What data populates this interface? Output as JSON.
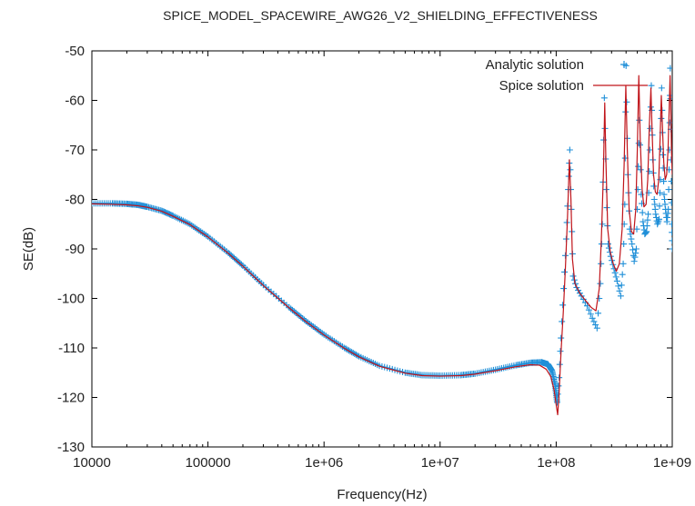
{
  "chart_data": {
    "type": "line",
    "title": "SPICE_MODEL_SPACEWIRE_AWG26_V2_SHIELDING_EFFECTIVENESS",
    "xlabel": "Frequency(Hz)",
    "ylabel": "SE(dB)",
    "xscale": "log",
    "xlim": [
      10000,
      1000000000
    ],
    "ylim": [
      -130,
      -50
    ],
    "xticks": [
      {
        "v": 10000,
        "label": "10000"
      },
      {
        "v": 100000,
        "label": "100000"
      },
      {
        "v": 1000000,
        "label": "1e+06"
      },
      {
        "v": 10000000,
        "label": "1e+07"
      },
      {
        "v": 100000000,
        "label": "1e+08"
      },
      {
        "v": 1000000000,
        "label": "1e+09"
      }
    ],
    "yticks": [
      {
        "v": -50,
        "label": "-50"
      },
      {
        "v": -60,
        "label": "-60"
      },
      {
        "v": -70,
        "label": "-70"
      },
      {
        "v": -80,
        "label": "-80"
      },
      {
        "v": -90,
        "label": "-90"
      },
      {
        "v": -100,
        "label": "-100"
      },
      {
        "v": -110,
        "label": "-110"
      },
      {
        "v": -120,
        "label": "-120"
      },
      {
        "v": -130,
        "label": "-130"
      }
    ],
    "legend_position": "top-right",
    "series": [
      {
        "name": "Analytic solution",
        "style": "points",
        "marker": "+",
        "color": "#1f8fd8",
        "points": [
          [
            10000,
            -80.8
          ],
          [
            15000,
            -80.8
          ],
          [
            20000,
            -80.9
          ],
          [
            25000,
            -81.1
          ],
          [
            30000,
            -81.5
          ],
          [
            40000,
            -82.3
          ],
          [
            50000,
            -83.3
          ],
          [
            70000,
            -85.0
          ],
          [
            100000,
            -87.5
          ],
          [
            150000,
            -90.8
          ],
          [
            200000,
            -93.4
          ],
          [
            300000,
            -97.3
          ],
          [
            500000,
            -101.8
          ],
          [
            700000,
            -104.6
          ],
          [
            1000000,
            -107.3
          ],
          [
            1500000,
            -110.0
          ],
          [
            2000000,
            -111.7
          ],
          [
            3000000,
            -113.6
          ],
          [
            5000000,
            -115.0
          ],
          [
            7000000,
            -115.5
          ],
          [
            10000000,
            -115.6
          ],
          [
            15000000,
            -115.5
          ],
          [
            20000000,
            -115.2
          ],
          [
            30000000,
            -114.4
          ],
          [
            45000000,
            -113.5
          ],
          [
            60000000,
            -113.0
          ],
          [
            75000000,
            -112.9
          ],
          [
            85000000,
            -113.3
          ],
          [
            92000000,
            -114.6
          ],
          [
            98000000,
            -117.5
          ],
          [
            102000000,
            -121.0
          ],
          [
            106000000,
            -116.0
          ],
          [
            110000000,
            -108.0
          ],
          [
            116000000,
            -98.0
          ],
          [
            122000000,
            -88.0
          ],
          [
            127000000,
            -78.0
          ],
          [
            131000000,
            -70.0
          ],
          [
            135000000,
            -82.0
          ],
          [
            140000000,
            -95.5
          ],
          [
            150000000,
            -97.8
          ],
          [
            165000000,
            -99.5
          ],
          [
            185000000,
            -101.5
          ],
          [
            205000000,
            -104.0
          ],
          [
            225000000,
            -106.0
          ],
          [
            240000000,
            -97.0
          ],
          [
            250000000,
            -85.0
          ],
          [
            260000000,
            -59.5
          ],
          [
            270000000,
            -78.0
          ],
          [
            280000000,
            -89.0
          ],
          [
            295000000,
            -91.5
          ],
          [
            315000000,
            -94.0
          ],
          [
            335000000,
            -96.5
          ],
          [
            360000000,
            -99.5
          ],
          [
            378000000,
            -93.0
          ],
          [
            390000000,
            -81.0
          ],
          [
            400000000,
            -53.0
          ],
          [
            415000000,
            -75.0
          ],
          [
            430000000,
            -86.0
          ],
          [
            450000000,
            -89.0
          ],
          [
            470000000,
            -92.5
          ],
          [
            490000000,
            -90.0
          ],
          [
            505000000,
            -78.0
          ],
          [
            520000000,
            -64.0
          ],
          [
            540000000,
            -79.0
          ],
          [
            560000000,
            -84.5
          ],
          [
            580000000,
            -87.0
          ],
          [
            600000000,
            -86.5
          ],
          [
            620000000,
            -83.0
          ],
          [
            640000000,
            -70.0
          ],
          [
            660000000,
            -57.0
          ],
          [
            680000000,
            -72.0
          ],
          [
            700000000,
            -80.0
          ],
          [
            720000000,
            -83.0
          ],
          [
            745000000,
            -85.0
          ],
          [
            770000000,
            -84.0
          ],
          [
            790000000,
            -76.0
          ],
          [
            810000000,
            -57.5
          ],
          [
            830000000,
            -71.0
          ],
          [
            850000000,
            -79.0
          ],
          [
            875000000,
            -82.0
          ],
          [
            900000000,
            -84.5
          ],
          [
            925000000,
            -82.0
          ],
          [
            945000000,
            -70.0
          ],
          [
            962000000,
            -53.5
          ],
          [
            978000000,
            -72.0
          ],
          [
            990000000,
            -85.0
          ],
          [
            1000000000,
            -90.0
          ]
        ]
      },
      {
        "name": "Spice solution",
        "style": "line",
        "color": "#c0141a",
        "points": [
          [
            10000,
            -80.9
          ],
          [
            15000,
            -81.0
          ],
          [
            20000,
            -81.1
          ],
          [
            25000,
            -81.3
          ],
          [
            30000,
            -81.6
          ],
          [
            40000,
            -82.4
          ],
          [
            50000,
            -83.4
          ],
          [
            70000,
            -85.1
          ],
          [
            100000,
            -87.6
          ],
          [
            150000,
            -90.9
          ],
          [
            200000,
            -93.5
          ],
          [
            300000,
            -97.4
          ],
          [
            500000,
            -101.9
          ],
          [
            700000,
            -104.7
          ],
          [
            1000000,
            -107.4
          ],
          [
            1500000,
            -110.1
          ],
          [
            2000000,
            -111.8
          ],
          [
            3000000,
            -113.7
          ],
          [
            5000000,
            -115.1
          ],
          [
            7000000,
            -115.6
          ],
          [
            10000000,
            -115.7
          ],
          [
            15000000,
            -115.6
          ],
          [
            20000000,
            -115.3
          ],
          [
            30000000,
            -114.6
          ],
          [
            45000000,
            -113.8
          ],
          [
            60000000,
            -113.4
          ],
          [
            72000000,
            -113.5
          ],
          [
            82000000,
            -114.3
          ],
          [
            90000000,
            -115.8
          ],
          [
            96000000,
            -118.5
          ],
          [
            100000000,
            -121.5
          ],
          [
            103000000,
            -123.5
          ],
          [
            106000000,
            -119.0
          ],
          [
            110000000,
            -111.0
          ],
          [
            115000000,
            -103.0
          ],
          [
            120000000,
            -94.0
          ],
          [
            125000000,
            -84.0
          ],
          [
            130000000,
            -72.0
          ],
          [
            134000000,
            -80.0
          ],
          [
            138000000,
            -92.0
          ],
          [
            145000000,
            -97.0
          ],
          [
            160000000,
            -99.0
          ],
          [
            180000000,
            -100.5
          ],
          [
            200000000,
            -101.8
          ],
          [
            220000000,
            -102.5
          ],
          [
            235000000,
            -98.0
          ],
          [
            245000000,
            -88.0
          ],
          [
            255000000,
            -75.0
          ],
          [
            262000000,
            -60.5
          ],
          [
            268000000,
            -72.0
          ],
          [
            278000000,
            -86.0
          ],
          [
            292000000,
            -90.5
          ],
          [
            310000000,
            -93.0
          ],
          [
            330000000,
            -94.5
          ],
          [
            350000000,
            -93.0
          ],
          [
            370000000,
            -86.0
          ],
          [
            385000000,
            -73.0
          ],
          [
            398000000,
            -57.0
          ],
          [
            410000000,
            -70.0
          ],
          [
            425000000,
            -82.0
          ],
          [
            445000000,
            -86.5
          ],
          [
            465000000,
            -87.0
          ],
          [
            485000000,
            -82.0
          ],
          [
            500000000,
            -70.0
          ],
          [
            515000000,
            -55.0
          ],
          [
            530000000,
            -68.0
          ],
          [
            550000000,
            -78.0
          ],
          [
            570000000,
            -81.5
          ],
          [
            595000000,
            -81.0
          ],
          [
            615000000,
            -76.0
          ],
          [
            635000000,
            -65.0
          ],
          [
            655000000,
            -57.5
          ],
          [
            670000000,
            -66.0
          ],
          [
            690000000,
            -75.0
          ],
          [
            715000000,
            -78.5
          ],
          [
            740000000,
            -79.0
          ],
          [
            765000000,
            -76.0
          ],
          [
            785000000,
            -68.0
          ],
          [
            805000000,
            -59.0
          ],
          [
            825000000,
            -66.0
          ],
          [
            845000000,
            -72.5
          ],
          [
            870000000,
            -76.0
          ],
          [
            895000000,
            -75.0
          ],
          [
            920000000,
            -70.0
          ],
          [
            940000000,
            -62.0
          ],
          [
            958000000,
            -55.0
          ],
          [
            972000000,
            -62.0
          ],
          [
            985000000,
            -70.0
          ],
          [
            1000000000,
            -75.0
          ]
        ]
      }
    ]
  }
}
